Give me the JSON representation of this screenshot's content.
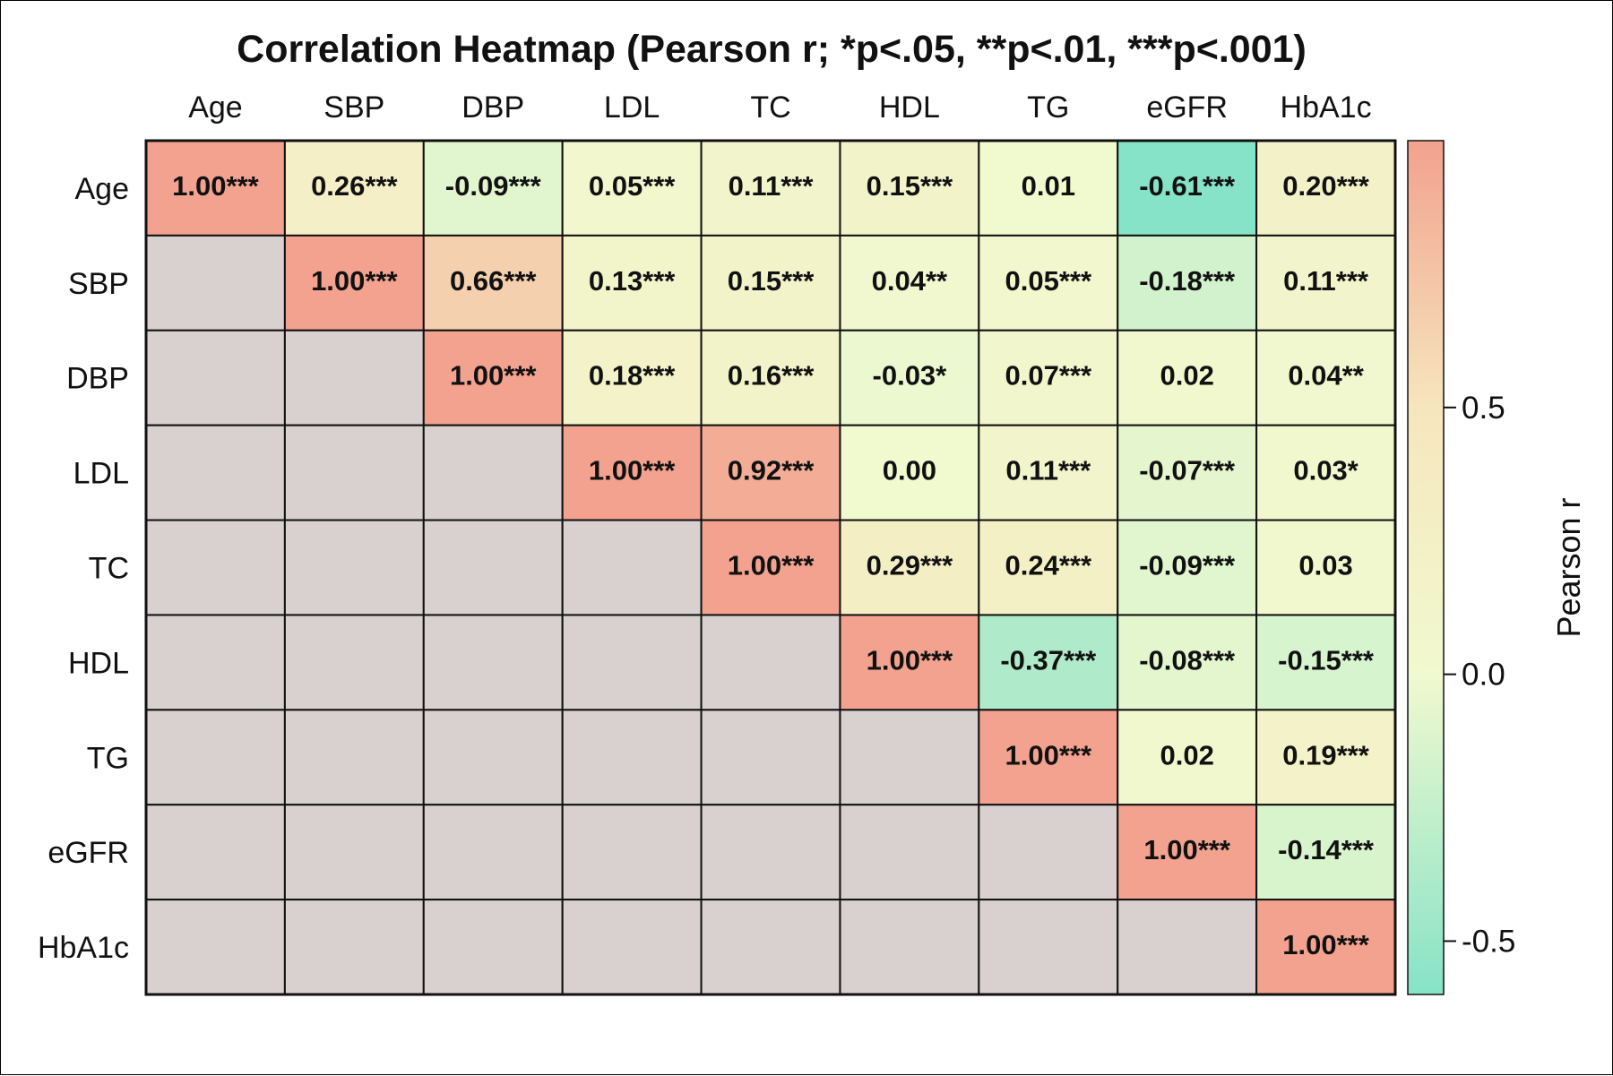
{
  "chart_data": {
    "type": "heatmap",
    "title": "Correlation Heatmap (Pearson r; *p<.05, **p<.01, ***p<.001)",
    "variables": [
      "Age",
      "SBP",
      "DBP",
      "LDL",
      "TC",
      "HDL",
      "TG",
      "eGFR",
      "HbA1c"
    ],
    "matrix_shape": "upper-triangle",
    "values": [
      [
        1.0,
        0.26,
        -0.09,
        0.05,
        0.11,
        0.15,
        0.01,
        -0.61,
        0.2
      ],
      [
        null,
        1.0,
        0.66,
        0.13,
        0.15,
        0.04,
        0.05,
        -0.18,
        0.11
      ],
      [
        null,
        null,
        1.0,
        0.18,
        0.16,
        -0.03,
        0.07,
        0.02,
        0.04
      ],
      [
        null,
        null,
        null,
        1.0,
        0.92,
        0.0,
        0.11,
        -0.07,
        0.03
      ],
      [
        null,
        null,
        null,
        null,
        1.0,
        0.29,
        0.24,
        -0.09,
        0.03
      ],
      [
        null,
        null,
        null,
        null,
        null,
        1.0,
        -0.37,
        -0.08,
        -0.15
      ],
      [
        null,
        null,
        null,
        null,
        null,
        null,
        1.0,
        0.02,
        0.19
      ],
      [
        null,
        null,
        null,
        null,
        null,
        null,
        null,
        1.0,
        -0.14
      ],
      [
        null,
        null,
        null,
        null,
        null,
        null,
        null,
        null,
        1.0
      ]
    ],
    "labels": [
      [
        "1.00***",
        "0.26***",
        "-0.09***",
        "0.05***",
        "0.11***",
        "0.15***",
        "0.01",
        "-0.61***",
        "0.20***"
      ],
      [
        "",
        "1.00***",
        "0.66***",
        "0.13***",
        "0.15***",
        "0.04**",
        "0.05***",
        "-0.18***",
        "0.11***"
      ],
      [
        "",
        "",
        "1.00***",
        "0.18***",
        "0.16***",
        "-0.03*",
        "0.07***",
        "0.02",
        "0.04**"
      ],
      [
        "",
        "",
        "",
        "1.00***",
        "0.92***",
        "0.00",
        "0.11***",
        "-0.07***",
        "0.03*"
      ],
      [
        "",
        "",
        "",
        "",
        "1.00***",
        "0.29***",
        "0.24***",
        "-0.09***",
        "0.03"
      ],
      [
        "",
        "",
        "",
        "",
        "",
        "1.00***",
        "-0.37***",
        "-0.08***",
        "-0.15***"
      ],
      [
        "",
        "",
        "",
        "",
        "",
        "",
        "1.00***",
        "0.02",
        "0.19***"
      ],
      [
        "",
        "",
        "",
        "",
        "",
        "",
        "",
        "1.00***",
        "-0.14***"
      ],
      [
        "",
        "",
        "",
        "",
        "",
        "",
        "",
        "",
        "1.00***"
      ]
    ],
    "colorbar": {
      "label": "Pearson r",
      "range": [
        -0.6,
        1.0
      ],
      "ticks": [
        0.5,
        0.0,
        -0.5
      ],
      "tick_labels": [
        "0.5",
        "0.0",
        "-0.5"
      ]
    },
    "colors": {
      "low": "#86e3c7",
      "mid": "#f1f9cf",
      "mid_high": "#f6e6bd",
      "high": "#f2a28e",
      "masked": "#d9d0d0"
    },
    "x_axis_position": "top",
    "legend_placement": "right"
  }
}
